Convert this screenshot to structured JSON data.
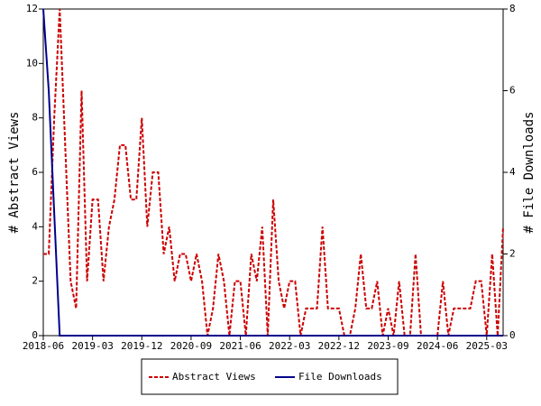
{
  "chart_data": {
    "type": "line",
    "x": [
      "2018-06",
      "2018-07",
      "2018-08",
      "2018-09",
      "2018-10",
      "2018-11",
      "2018-12",
      "2019-01",
      "2019-02",
      "2019-03",
      "2019-04",
      "2019-05",
      "2019-06",
      "2019-07",
      "2019-08",
      "2019-09",
      "2019-10",
      "2019-11",
      "2019-12",
      "2020-01",
      "2020-02",
      "2020-03",
      "2020-04",
      "2020-05",
      "2020-06",
      "2020-07",
      "2020-08",
      "2020-09",
      "2020-10",
      "2020-11",
      "2020-12",
      "2021-01",
      "2021-02",
      "2021-03",
      "2021-04",
      "2021-05",
      "2021-06",
      "2021-07",
      "2021-08",
      "2021-09",
      "2021-10",
      "2021-11",
      "2021-12",
      "2022-01",
      "2022-02",
      "2022-03",
      "2022-04",
      "2022-05",
      "2022-06",
      "2022-07",
      "2022-08",
      "2022-09",
      "2022-10",
      "2022-11",
      "2022-12",
      "2023-01",
      "2023-02",
      "2023-03",
      "2023-04",
      "2023-05",
      "2023-06",
      "2023-07",
      "2023-08",
      "2023-09",
      "2023-10",
      "2023-11",
      "2023-12",
      "2024-01",
      "2024-02",
      "2024-03",
      "2024-04",
      "2024-05",
      "2024-06",
      "2024-07",
      "2024-08",
      "2024-09",
      "2024-10",
      "2024-11",
      "2024-12",
      "2025-01",
      "2025-02",
      "2025-03",
      "2025-04",
      "2025-05",
      "2025-06"
    ],
    "xticks": [
      "2018-06",
      "2019-03",
      "2019-12",
      "2020-09",
      "2021-06",
      "2022-03",
      "2022-12",
      "2023-09",
      "2024-06",
      "2025-03"
    ],
    "ylabel": "# Abstract Views",
    "y2label": "# File Downloads",
    "ylim": [
      0,
      12
    ],
    "yticks": [
      0,
      2,
      4,
      6,
      8,
      10,
      12
    ],
    "y2lim": [
      0,
      8
    ],
    "y2ticks": [
      0,
      2,
      4,
      6,
      8
    ],
    "legend": "bottom",
    "series": [
      {
        "name": "Abstract Views",
        "color": "#cc0000",
        "dashed": true,
        "values": [
          3,
          3,
          8,
          12,
          7,
          2,
          1,
          9,
          2,
          5,
          5,
          2,
          4,
          5,
          7,
          7,
          5,
          5,
          8,
          4,
          6,
          6,
          3,
          4,
          2,
          3,
          3,
          2,
          3,
          2,
          0,
          1,
          3,
          2,
          0,
          2,
          2,
          0,
          3,
          2,
          4,
          0,
          5,
          2,
          1,
          2,
          2,
          0,
          1,
          1,
          1,
          4,
          1,
          1,
          1,
          0,
          0,
          1,
          3,
          1,
          1,
          2,
          0,
          1,
          0,
          2,
          0,
          0,
          3,
          0,
          0,
          0,
          0,
          2,
          0,
          1,
          1,
          1,
          1,
          2,
          2,
          0,
          3,
          0,
          4
        ]
      },
      {
        "name": "File Downloads",
        "color": "#00008b",
        "axis": "y2",
        "values": [
          8,
          6,
          3,
          0,
          0,
          0,
          0,
          0,
          0,
          0,
          0,
          0,
          0,
          0,
          0,
          0,
          0,
          0,
          0,
          0,
          0,
          0,
          0,
          0,
          0,
          0,
          0,
          0,
          0,
          0,
          0,
          0,
          0,
          0,
          0,
          0,
          0,
          0,
          0,
          0,
          0,
          0,
          0,
          0,
          0,
          0,
          0,
          0,
          0,
          0,
          0,
          0,
          0,
          0,
          0,
          0,
          0,
          0,
          0,
          0,
          0,
          0,
          0,
          0,
          0,
          0,
          0,
          0,
          0,
          0,
          0,
          0,
          0,
          0,
          0,
          0,
          0,
          0,
          0,
          0,
          0,
          0,
          0,
          0,
          0
        ]
      }
    ]
  }
}
